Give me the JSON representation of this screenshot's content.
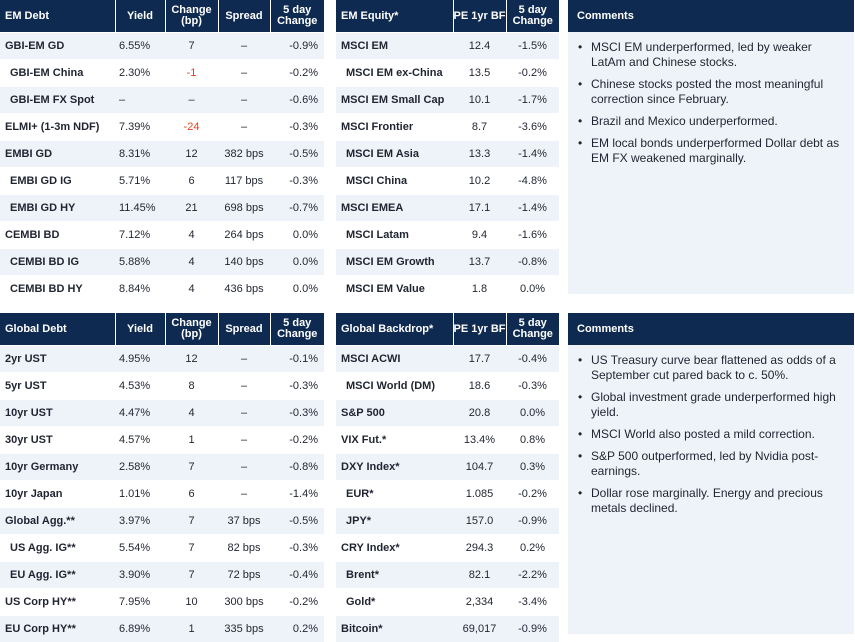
{
  "em_debt": {
    "headers": [
      "EM Debt",
      "Yield",
      "Change (bp)",
      "Spread",
      "5 day Change"
    ],
    "rows": [
      {
        "name": "GBI-EM GD",
        "sub": false,
        "shade": true,
        "yield": "6.55%",
        "change": "7",
        "neg": false,
        "spread": "–",
        "five": "-0.9%"
      },
      {
        "name": "GBI-EM China",
        "sub": true,
        "shade": false,
        "yield": "2.30%",
        "change": "-1",
        "neg": true,
        "spread": "–",
        "five": "-0.2%"
      },
      {
        "name": "GBI-EM FX Spot",
        "sub": true,
        "shade": true,
        "yield": "–",
        "change": "–",
        "neg": false,
        "spread": "–",
        "five": "-0.6%"
      },
      {
        "name": "ELMI+ (1-3m NDF)",
        "sub": false,
        "shade": false,
        "yield": "7.39%",
        "change": "-24",
        "neg": true,
        "spread": "–",
        "five": "-0.3%"
      },
      {
        "name": "EMBI GD",
        "sub": false,
        "shade": true,
        "yield": "8.31%",
        "change": "12",
        "neg": false,
        "spread": "382 bps",
        "five": "-0.5%"
      },
      {
        "name": "EMBI GD IG",
        "sub": true,
        "shade": false,
        "yield": "5.71%",
        "change": "6",
        "neg": false,
        "spread": "117 bps",
        "five": "-0.3%"
      },
      {
        "name": "EMBI GD HY",
        "sub": true,
        "shade": true,
        "yield": "11.45%",
        "change": "21",
        "neg": false,
        "spread": "698 bps",
        "five": "-0.7%"
      },
      {
        "name": "CEMBI BD",
        "sub": false,
        "shade": false,
        "yield": "7.12%",
        "change": "4",
        "neg": false,
        "spread": "264 bps",
        "five": "0.0%"
      },
      {
        "name": "CEMBI BD IG",
        "sub": true,
        "shade": true,
        "yield": "5.88%",
        "change": "4",
        "neg": false,
        "spread": "140 bps",
        "five": "0.0%"
      },
      {
        "name": "CEMBI BD HY",
        "sub": true,
        "shade": false,
        "yield": "8.84%",
        "change": "4",
        "neg": false,
        "spread": "436 bps",
        "five": "0.0%"
      }
    ]
  },
  "em_equity": {
    "headers": [
      "EM Equity*",
      "PE 1yr BF",
      "5 day Change"
    ],
    "rows": [
      {
        "name": "MSCI EM",
        "sub": false,
        "shade": true,
        "pe": "12.4",
        "five": "-1.5%"
      },
      {
        "name": "MSCI EM ex-China",
        "sub": true,
        "shade": false,
        "pe": "13.5",
        "five": "-0.2%"
      },
      {
        "name": "MSCI EM Small Cap",
        "sub": false,
        "shade": true,
        "pe": "10.1",
        "five": "-1.7%"
      },
      {
        "name": "MSCI Frontier",
        "sub": false,
        "shade": false,
        "pe": "8.7",
        "five": "-3.6%"
      },
      {
        "name": "MSCI EM Asia",
        "sub": true,
        "shade": true,
        "pe": "13.3",
        "five": "-1.4%"
      },
      {
        "name": "MSCI China",
        "sub": true,
        "shade": false,
        "pe": "10.2",
        "five": "-4.8%"
      },
      {
        "name": "MSCI EMEA",
        "sub": false,
        "shade": true,
        "pe": "17.1",
        "five": "-1.4%"
      },
      {
        "name": "MSCI Latam",
        "sub": true,
        "shade": false,
        "pe": "9.4",
        "five": "-1.6%"
      },
      {
        "name": "MSCI EM Growth",
        "sub": true,
        "shade": true,
        "pe": "13.7",
        "five": "-0.8%"
      },
      {
        "name": "MSCI EM Value",
        "sub": true,
        "shade": false,
        "pe": "1.8",
        "five": "0.0%"
      }
    ]
  },
  "comments_top": {
    "title": "Comments",
    "items": [
      "MSCI EM underperformed, led by weaker LatAm and Chinese stocks.",
      "Chinese stocks posted the most meaningful correction since February.",
      "Brazil and Mexico underperformed.",
      "EM local bonds underperformed Dollar debt as EM FX weakened marginally."
    ]
  },
  "global_debt": {
    "headers": [
      "Global Debt",
      "Yield",
      "Change (bp)",
      "Spread",
      "5 day Change"
    ],
    "rows": [
      {
        "name": "2yr UST",
        "sub": false,
        "shade": true,
        "yield": "4.95%",
        "change": "12",
        "neg": false,
        "spread": "–",
        "five": "-0.1%"
      },
      {
        "name": "5yr UST",
        "sub": false,
        "shade": false,
        "yield": "4.53%",
        "change": "8",
        "neg": false,
        "spread": "–",
        "five": "-0.3%"
      },
      {
        "name": "10yr UST",
        "sub": false,
        "shade": true,
        "yield": "4.47%",
        "change": "4",
        "neg": false,
        "spread": "–",
        "five": "-0.3%"
      },
      {
        "name": "30yr UST",
        "sub": false,
        "shade": false,
        "yield": "4.57%",
        "change": "1",
        "neg": false,
        "spread": "–",
        "five": "-0.2%"
      },
      {
        "name": "10yr Germany",
        "sub": false,
        "shade": true,
        "yield": "2.58%",
        "change": "7",
        "neg": false,
        "spread": "–",
        "five": "-0.8%"
      },
      {
        "name": "10yr Japan",
        "sub": false,
        "shade": false,
        "yield": "1.01%",
        "change": "6",
        "neg": false,
        "spread": "–",
        "five": "-1.4%"
      },
      {
        "name": "Global Agg.**",
        "sub": false,
        "shade": true,
        "yield": "3.97%",
        "change": "7",
        "neg": false,
        "spread": "37 bps",
        "five": "-0.5%"
      },
      {
        "name": "US Agg. IG**",
        "sub": true,
        "shade": false,
        "yield": "5.54%",
        "change": "7",
        "neg": false,
        "spread": "82 bps",
        "five": "-0.3%"
      },
      {
        "name": "EU Agg. IG**",
        "sub": true,
        "shade": true,
        "yield": "3.90%",
        "change": "7",
        "neg": false,
        "spread": "72 bps",
        "five": "-0.4%"
      },
      {
        "name": "US Corp HY**",
        "sub": false,
        "shade": false,
        "yield": "7.95%",
        "change": "10",
        "neg": false,
        "spread": "300 bps",
        "five": "-0.2%"
      },
      {
        "name": "EU Corp HY**",
        "sub": false,
        "shade": true,
        "yield": "6.89%",
        "change": "1",
        "neg": false,
        "spread": "335 bps",
        "five": "0.2%"
      }
    ]
  },
  "global_backdrop": {
    "headers": [
      "Global Backdrop*",
      "PE 1yr BF",
      "5 day Change"
    ],
    "rows": [
      {
        "name": "MSCI ACWI",
        "sub": false,
        "shade": true,
        "pe": "17.7",
        "five": "-0.4%"
      },
      {
        "name": "MSCI World (DM)",
        "sub": true,
        "shade": false,
        "pe": "18.6",
        "five": "-0.3%"
      },
      {
        "name": "S&P 500",
        "sub": false,
        "shade": true,
        "pe": "20.8",
        "five": "0.0%"
      },
      {
        "name": "VIX Fut.*",
        "sub": false,
        "shade": false,
        "pe": "13.4%",
        "five": "0.8%"
      },
      {
        "name": "DXY Index*",
        "sub": false,
        "shade": true,
        "pe": "104.7",
        "five": "0.3%"
      },
      {
        "name": "EUR*",
        "sub": true,
        "shade": false,
        "pe": "1.085",
        "five": "-0.2%"
      },
      {
        "name": "JPY*",
        "sub": true,
        "shade": true,
        "pe": "157.0",
        "five": "-0.9%"
      },
      {
        "name": "CRY Index*",
        "sub": false,
        "shade": false,
        "pe": "294.3",
        "five": "0.2%"
      },
      {
        "name": "Brent*",
        "sub": true,
        "shade": true,
        "pe": "82.1",
        "five": "-2.2%"
      },
      {
        "name": "Gold*",
        "sub": true,
        "shade": false,
        "pe": "2,334",
        "five": "-3.4%"
      },
      {
        "name": "Bitcoin*",
        "sub": false,
        "shade": true,
        "pe": "69,017",
        "five": "-0.9%"
      }
    ]
  },
  "comments_bottom": {
    "title": "Comments",
    "items": [
      "US Treasury curve bear flattened as odds of a September cut pared back to c. 50%.",
      "Global investment grade underperformed high yield.",
      "MSCI World also posted a mild correction.",
      "S&P 500 outperformed, led by Nvidia post-earnings.",
      "Dollar rose marginally. Energy and precious metals declined."
    ]
  }
}
